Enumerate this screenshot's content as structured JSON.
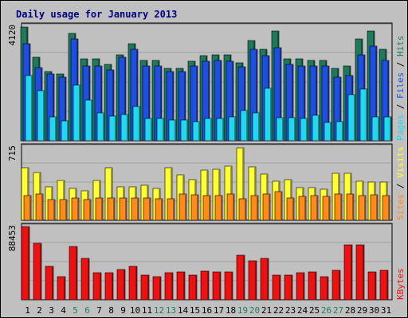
{
  "title": "Daily usage for January 2013",
  "colors": {
    "background": "#C0C0C0",
    "hits": "#1F7A5C",
    "files": "#1F4FE0",
    "pages": "#22D8F0",
    "visits": "#FFFF33",
    "sites": "#FF8C1A",
    "kbytes": "#EE1111",
    "weekend_label": "#1F8060",
    "axis_label_title": "#000080"
  },
  "chart_data": [
    {
      "type": "bar",
      "panel": "hits-files-pages",
      "ymax_label": "4120",
      "ylim": [
        0,
        4120
      ],
      "legend": [
        "Pages",
        "Files",
        "Hits"
      ],
      "categories": [
        "1",
        "2",
        "3",
        "4",
        "5",
        "6",
        "7",
        "8",
        "9",
        "10",
        "11",
        "12",
        "13",
        "14",
        "15",
        "16",
        "17",
        "18",
        "19",
        "20",
        "21",
        "22",
        "23",
        "24",
        "25",
        "26",
        "27",
        "28",
        "29",
        "30",
        "31"
      ],
      "series": [
        {
          "name": "Hits",
          "values": [
            4090,
            3000,
            2480,
            2400,
            3850,
            2950,
            2950,
            2760,
            3100,
            3500,
            2900,
            2900,
            2600,
            2600,
            2850,
            3050,
            3100,
            3100,
            2800,
            3600,
            3300,
            3950,
            2950,
            2950,
            2900,
            2900,
            2600,
            2700,
            3650,
            3960,
            3300
          ]
        },
        {
          "name": "Files",
          "values": [
            3500,
            2630,
            2400,
            2300,
            3660,
            2700,
            2700,
            2560,
            3000,
            3300,
            2700,
            2700,
            2500,
            2500,
            2700,
            2850,
            2900,
            2850,
            2650,
            3300,
            3050,
            3360,
            2750,
            2700,
            2700,
            2700,
            2300,
            2350,
            3080,
            3400,
            2900
          ]
        },
        {
          "name": "Pages",
          "values": [
            2350,
            1800,
            850,
            720,
            2000,
            1450,
            990,
            900,
            940,
            1230,
            800,
            790,
            750,
            740,
            700,
            800,
            810,
            870,
            1100,
            1000,
            1900,
            830,
            820,
            800,
            920,
            660,
            700,
            1670,
            1850,
            850,
            850
          ]
        }
      ]
    },
    {
      "type": "bar",
      "panel": "visits-sites",
      "ymax_label": "715",
      "ylim": [
        0,
        715
      ],
      "legend": [
        "Sites",
        "Visits"
      ],
      "categories": [
        "1",
        "2",
        "3",
        "4",
        "5",
        "6",
        "7",
        "8",
        "9",
        "10",
        "11",
        "12",
        "13",
        "14",
        "15",
        "16",
        "17",
        "18",
        "19",
        "20",
        "21",
        "22",
        "23",
        "24",
        "25",
        "26",
        "27",
        "28",
        "29",
        "30",
        "31"
      ],
      "series": [
        {
          "name": "Visits",
          "values": [
            510,
            470,
            330,
            390,
            310,
            290,
            390,
            510,
            330,
            330,
            340,
            310,
            510,
            440,
            400,
            490,
            500,
            530,
            710,
            520,
            450,
            380,
            400,
            320,
            320,
            300,
            460,
            460,
            380,
            370,
            370
          ]
        },
        {
          "name": "Sites",
          "values": [
            240,
            260,
            200,
            200,
            220,
            200,
            220,
            220,
            220,
            220,
            220,
            210,
            210,
            260,
            250,
            240,
            240,
            260,
            210,
            240,
            260,
            280,
            220,
            230,
            240,
            230,
            260,
            260,
            240,
            250,
            240
          ]
        }
      ]
    },
    {
      "type": "bar",
      "panel": "kbytes",
      "ymax_label": "88453",
      "ylim": [
        0,
        88453
      ],
      "legend": [
        "KBytes"
      ],
      "categories": [
        "1",
        "2",
        "3",
        "4",
        "5",
        "6",
        "7",
        "8",
        "9",
        "10",
        "11",
        "12",
        "13",
        "14",
        "15",
        "16",
        "17",
        "18",
        "19",
        "20",
        "21",
        "22",
        "23",
        "24",
        "25",
        "26",
        "27",
        "28",
        "29",
        "30",
        "31"
      ],
      "series": [
        {
          "name": "KBytes",
          "values": [
            88000,
            68000,
            40000,
            28000,
            64000,
            50000,
            33000,
            33000,
            37000,
            40000,
            30000,
            28000,
            33000,
            34000,
            30000,
            35000,
            34000,
            34000,
            54000,
            47000,
            50000,
            30000,
            30000,
            33000,
            34000,
            28000,
            36000,
            66000,
            66000,
            34000,
            36000
          ]
        }
      ]
    }
  ],
  "x_labels": {
    "values": [
      "1",
      "2",
      "3",
      "4",
      "5",
      "6",
      "7",
      "8",
      "9",
      "10",
      "11",
      "12",
      "13",
      "14",
      "15",
      "16",
      "17",
      "18",
      "19",
      "20",
      "21",
      "22",
      "23",
      "24",
      "25",
      "26",
      "27",
      "28",
      "29",
      "30",
      "31"
    ],
    "weekend": [
      "5",
      "6",
      "12",
      "13",
      "19",
      "20",
      "26",
      "27"
    ]
  }
}
